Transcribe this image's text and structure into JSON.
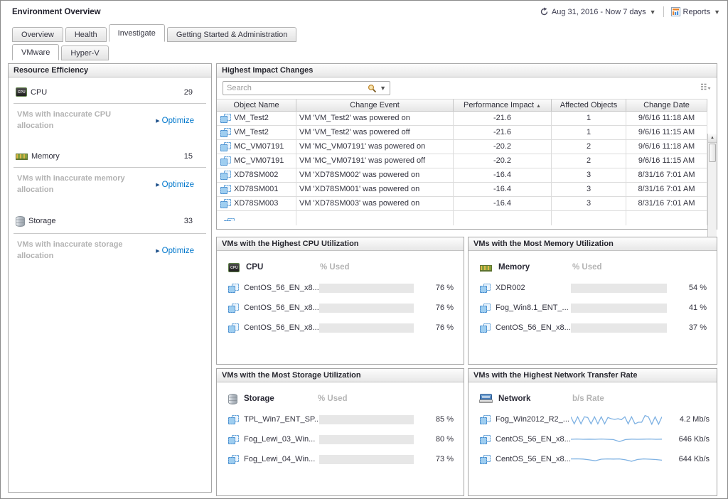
{
  "header": {
    "title": "Environment Overview",
    "time_range": "Aug 31, 2016 - Now 7 days",
    "reports_label": "Reports"
  },
  "tabs": {
    "main": [
      {
        "label": "Overview"
      },
      {
        "label": "Health"
      },
      {
        "label": "Investigate"
      },
      {
        "label": "Getting Started & Administration"
      }
    ],
    "active_main": "Investigate",
    "sub": [
      {
        "label": "VMware"
      },
      {
        "label": "Hyper-V"
      }
    ],
    "active_sub": "VMware"
  },
  "resource_efficiency": {
    "title": "Resource Efficiency",
    "sections": [
      {
        "icon": "cpu",
        "label": "CPU",
        "value": "29",
        "note": "VMs with inaccurate CPU allocation",
        "optimize": "Optimize"
      },
      {
        "icon": "memory",
        "label": "Memory",
        "value": "15",
        "note": "VMs with inaccurate memory allocation",
        "optimize": "Optimize"
      },
      {
        "icon": "storage",
        "label": "Storage",
        "value": "33",
        "note": "VMs with inaccurate storage allocation",
        "optimize": "Optimize"
      }
    ]
  },
  "highest_impact_changes": {
    "title": "Highest Impact Changes",
    "search_placeholder": "Search",
    "columns": [
      "Object Name",
      "Change Event",
      "Performance Impact",
      "Affected Objects",
      "Change Date"
    ],
    "sorted_by": "Performance Impact ascending",
    "rows": [
      {
        "object_name": "VM_Test2",
        "change_event": "VM 'VM_Test2' was powered on",
        "performance_impact": "-21.6",
        "affected_objects": "1",
        "change_date": "9/6/16 11:18 AM"
      },
      {
        "object_name": "VM_Test2",
        "change_event": "VM 'VM_Test2' was powered off",
        "performance_impact": "-21.6",
        "affected_objects": "1",
        "change_date": "9/6/16 11:15 AM"
      },
      {
        "object_name": "MC_VM07191",
        "change_event": "VM 'MC_VM07191' was powered on",
        "performance_impact": "-20.2",
        "affected_objects": "2",
        "change_date": "9/6/16 11:18 AM"
      },
      {
        "object_name": "MC_VM07191",
        "change_event": "VM 'MC_VM07191' was powered off",
        "performance_impact": "-20.2",
        "affected_objects": "2",
        "change_date": "9/6/16 11:15 AM"
      },
      {
        "object_name": "XD78SM002",
        "change_event": "VM 'XD78SM002' was powered on",
        "performance_impact": "-16.4",
        "affected_objects": "3",
        "change_date": "8/31/16 7:01 AM"
      },
      {
        "object_name": "XD78SM001",
        "change_event": "VM 'XD78SM001' was powered on",
        "performance_impact": "-16.4",
        "affected_objects": "3",
        "change_date": "8/31/16 7:01 AM"
      },
      {
        "object_name": "XD78SM003",
        "change_event": "VM 'XD78SM003' was powered on",
        "performance_impact": "-16.4",
        "affected_objects": "3",
        "change_date": "8/31/16 7:01 AM"
      }
    ]
  },
  "panels": {
    "cpu": {
      "title": "VMs with the Highest CPU Utilization",
      "resource_label": "CPU",
      "unit_label": "% Used",
      "icon": "cpu",
      "rows": [
        {
          "name": "CentOS_56_EN_x8...",
          "percent": 76,
          "value": "76 %"
        },
        {
          "name": "CentOS_56_EN_x8...",
          "percent": 76,
          "value": "76 %"
        },
        {
          "name": "CentOS_56_EN_x8...",
          "percent": 76,
          "value": "76 %"
        }
      ]
    },
    "memory": {
      "title": "VMs with the Most Memory Utilization",
      "resource_label": "Memory",
      "unit_label": "% Used",
      "icon": "memory",
      "rows": [
        {
          "name": "XDR002",
          "percent": 54,
          "value": "54 %"
        },
        {
          "name": "Fog_Win8.1_ENT_...",
          "percent": 41,
          "value": "41 %"
        },
        {
          "name": "CentOS_56_EN_x8...",
          "percent": 37,
          "value": "37 %"
        }
      ]
    },
    "storage": {
      "title": "VMs with the Most Storage Utilization",
      "resource_label": "Storage",
      "unit_label": "% Used",
      "icon": "storage",
      "rows": [
        {
          "name": "TPL_Win7_ENT_SP...",
          "percent": 85,
          "value": "85 %"
        },
        {
          "name": "Fog_Lewi_03_Win...",
          "percent": 80,
          "value": "80 %"
        },
        {
          "name": "Fog_Lewi_04_Win...",
          "percent": 73,
          "value": "73 %"
        }
      ]
    },
    "network": {
      "title": "VMs with the Highest Network Transfer Rate",
      "resource_label": "Network",
      "unit_label": "b/s Rate",
      "icon": "network",
      "rows": [
        {
          "name": "Fog_Win2012_R2_...",
          "value": "4.2 Mb/s",
          "spark": [
            30,
            85,
            30,
            85,
            30,
            35,
            85,
            30,
            85,
            30,
            85,
            35,
            45,
            50,
            45,
            52,
            30,
            85,
            30,
            85,
            72,
            72,
            20,
            30,
            88,
            30,
            88,
            30
          ]
        },
        {
          "name": "CentOS_56_EN_x8...",
          "value": "646 Kb/s",
          "spark": [
            50,
            48,
            50,
            49,
            50,
            48,
            50,
            52,
            68,
            52,
            49,
            50,
            49,
            48,
            50,
            49
          ]
        },
        {
          "name": "CentOS_56_EN_x8...",
          "value": "644 Kb/s",
          "spark": [
            48,
            47,
            49,
            55,
            62,
            50,
            48,
            49,
            48,
            55,
            66,
            52,
            48,
            50,
            53,
            58
          ]
        }
      ]
    }
  },
  "colors": {
    "bar_fill": "#1296f0",
    "bar_track": "#e7e7e7",
    "sparkline": "#7fb2e3",
    "optimize_link": "#0077cc",
    "muted_text": "#b2b2b2"
  }
}
